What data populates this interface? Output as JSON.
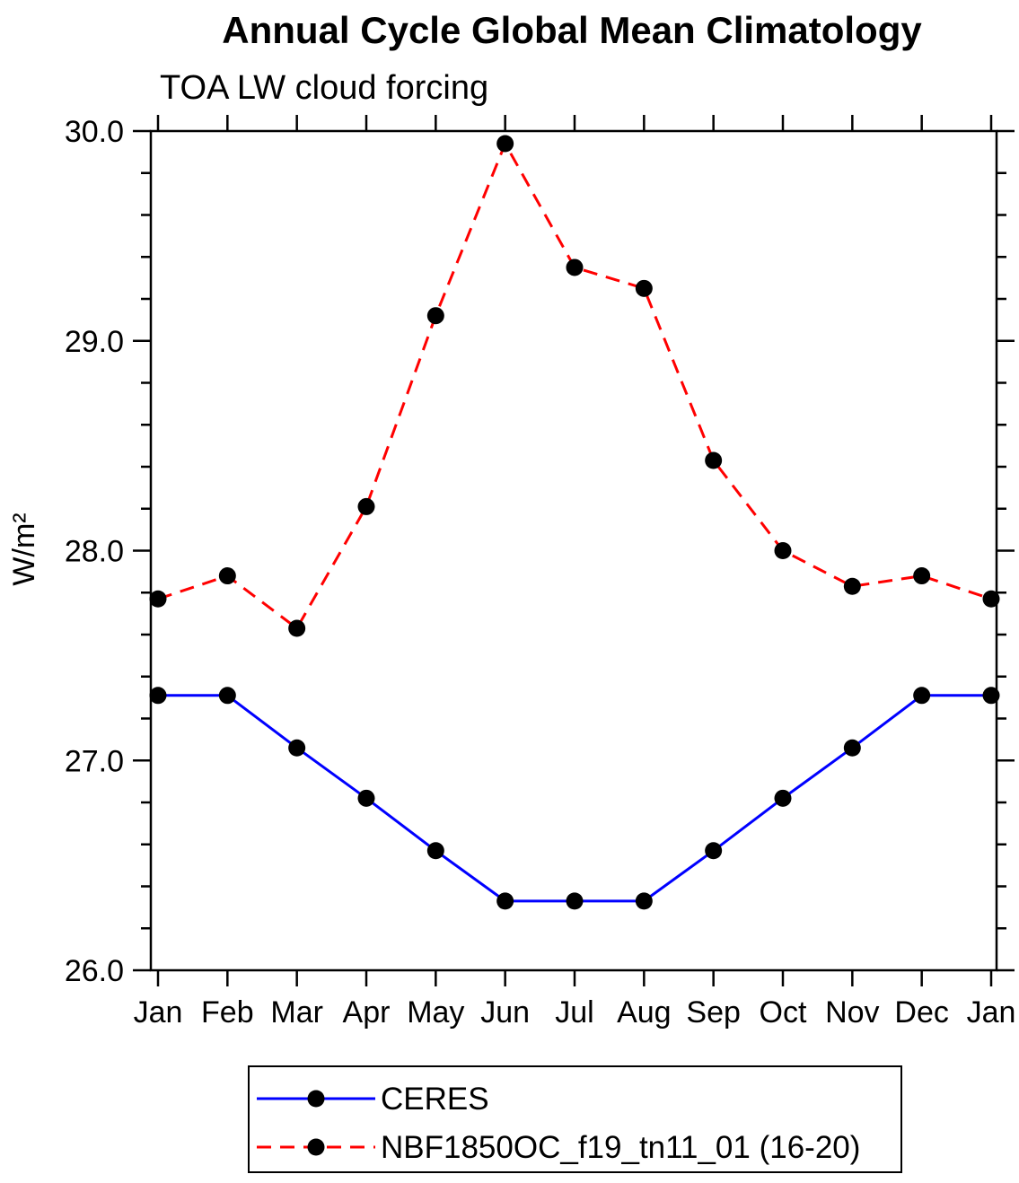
{
  "chart_data": {
    "type": "line",
    "title": "Annual Cycle Global Mean Climatology",
    "subtitle": "TOA LW cloud forcing",
    "ylabel": "W/m²",
    "xlabel": "",
    "x_categories": [
      "Jan",
      "Feb",
      "Mar",
      "Apr",
      "May",
      "Jun",
      "Jul",
      "Aug",
      "Sep",
      "Oct",
      "Nov",
      "Dec",
      "Jan"
    ],
    "ylim": [
      26.0,
      30.0
    ],
    "yticks": [
      {
        "value": 26.0,
        "label": "26.0"
      },
      {
        "value": 27.0,
        "label": "27.0"
      },
      {
        "value": 28.0,
        "label": "28.0"
      },
      {
        "value": 29.0,
        "label": "29.0"
      },
      {
        "value": 30.0,
        "label": "30.0"
      }
    ],
    "minor_tick_interval": 0.2,
    "grid": false,
    "legend_position": "bottom",
    "marker": "filled-circle",
    "series": [
      {
        "name": "CERES",
        "color": "#0000ff",
        "line_style": "solid",
        "marker_color": "#000000",
        "values": [
          27.31,
          27.31,
          27.06,
          26.82,
          26.57,
          26.33,
          26.33,
          26.33,
          26.57,
          26.82,
          27.06,
          27.31,
          27.31
        ]
      },
      {
        "name": "NBF1850OC_f19_tn11_01 (16-20)",
        "color": "#ff0000",
        "line_style": "dashed",
        "marker_color": "#000000",
        "values": [
          27.77,
          27.88,
          27.63,
          28.21,
          29.12,
          29.94,
          29.35,
          29.25,
          28.43,
          28.0,
          27.83,
          27.88,
          27.77
        ]
      }
    ]
  }
}
